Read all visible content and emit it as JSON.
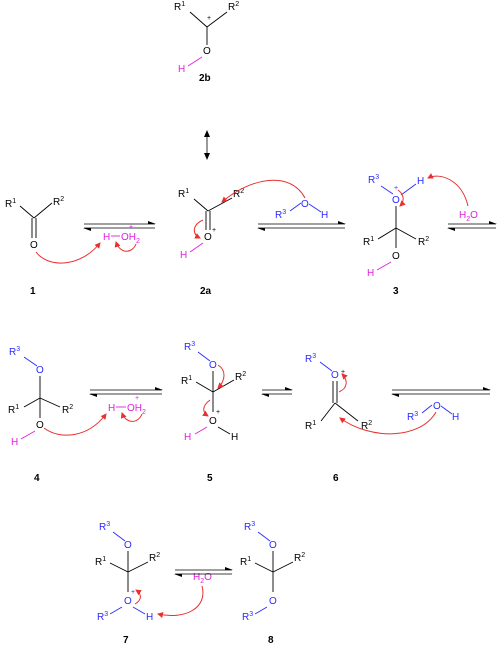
{
  "labels": {
    "R1": "R",
    "R2": "R",
    "R3": "R",
    "s1": "1",
    "s2": "2",
    "s3": "3",
    "O": "O",
    "H": "H",
    "OH2": "OH",
    "sub2": "2",
    "H2O": "H",
    "H2O_O": "O",
    "plus": "+",
    "minus": "-"
  },
  "compounds": {
    "c1": "1",
    "c2a": "2a",
    "c2b": "2b",
    "c3": "3",
    "c4": "4",
    "c5": "5",
    "c6": "6",
    "c7": "7",
    "c8": "8"
  },
  "colors": {
    "black": "#000000",
    "blue": "#2a2aff",
    "magenta": "#e020e0",
    "arrow_red": "#e83030"
  }
}
